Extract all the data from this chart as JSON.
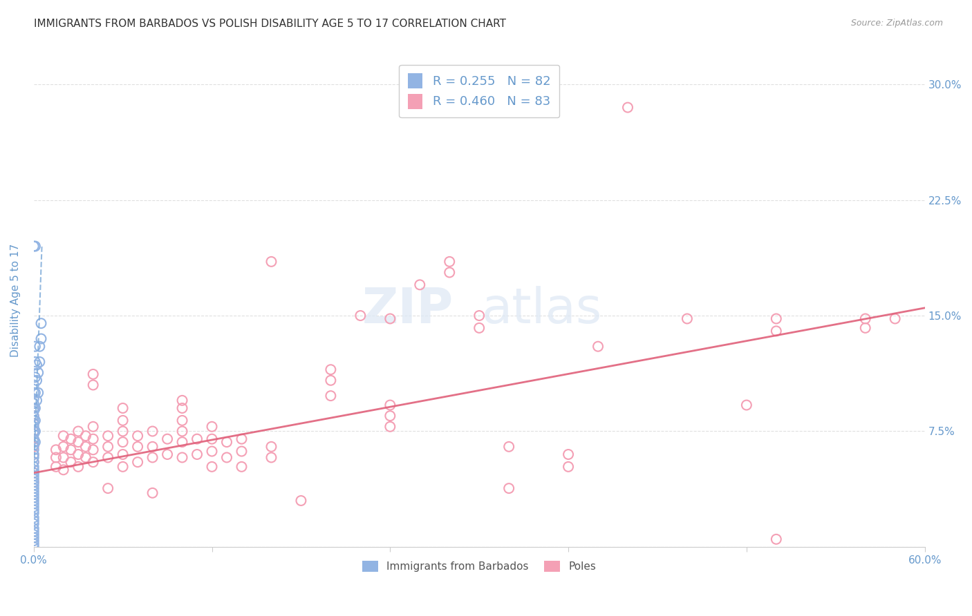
{
  "title": "IMMIGRANTS FROM BARBADOS VS POLISH DISABILITY AGE 5 TO 17 CORRELATION CHART",
  "source": "Source: ZipAtlas.com",
  "ylabel": "Disability Age 5 to 17",
  "xlim": [
    0.0,
    0.6
  ],
  "ylim": [
    0.0,
    0.32
  ],
  "ytick_vals": [
    0.0,
    0.075,
    0.15,
    0.225,
    0.3
  ],
  "yticklabels_right": [
    "",
    "7.5%",
    "15.0%",
    "22.5%",
    "30.0%"
  ],
  "xtick_vals": [
    0.0,
    0.12,
    0.24,
    0.36,
    0.48,
    0.6
  ],
  "xticklabels": [
    "0.0%",
    "",
    "",
    "",
    "",
    "60.0%"
  ],
  "legend_blue_r": "0.255",
  "legend_blue_n": "82",
  "legend_pink_r": "0.460",
  "legend_pink_n": "83",
  "legend_labels": [
    "Immigrants from Barbados",
    "Poles"
  ],
  "blue_color": "#92b4e3",
  "pink_color": "#f4a0b5",
  "blue_line_color": "#7aa8d8",
  "pink_line_color": "#e0607a",
  "blue_scatter": [
    [
      0.0,
      0.0
    ],
    [
      0.0,
      0.002
    ],
    [
      0.0,
      0.004
    ],
    [
      0.0,
      0.006
    ],
    [
      0.0,
      0.008
    ],
    [
      0.0,
      0.01
    ],
    [
      0.0,
      0.012
    ],
    [
      0.0,
      0.015
    ],
    [
      0.0,
      0.017
    ],
    [
      0.0,
      0.019
    ],
    [
      0.0,
      0.022
    ],
    [
      0.0,
      0.024
    ],
    [
      0.0,
      0.026
    ],
    [
      0.0,
      0.028
    ],
    [
      0.0,
      0.03
    ],
    [
      0.0,
      0.032
    ],
    [
      0.0,
      0.034
    ],
    [
      0.0,
      0.036
    ],
    [
      0.0,
      0.038
    ],
    [
      0.0,
      0.04
    ],
    [
      0.0,
      0.042
    ],
    [
      0.0,
      0.044
    ],
    [
      0.0,
      0.046
    ],
    [
      0.0,
      0.048
    ],
    [
      0.0,
      0.05
    ],
    [
      0.0,
      0.052
    ],
    [
      0.0,
      0.055
    ],
    [
      0.0,
      0.058
    ],
    [
      0.0,
      0.06
    ],
    [
      0.0,
      0.063
    ],
    [
      0.0,
      0.066
    ],
    [
      0.0,
      0.068
    ],
    [
      0.0,
      0.07
    ],
    [
      0.0,
      0.073
    ],
    [
      0.0,
      0.075
    ],
    [
      0.0,
      0.078
    ],
    [
      0.0,
      0.08
    ],
    [
      0.0,
      0.082
    ],
    [
      0.0,
      0.085
    ],
    [
      0.0,
      0.088
    ],
    [
      0.0,
      0.09
    ],
    [
      0.0,
      0.093
    ],
    [
      0.0,
      0.096
    ],
    [
      0.0,
      0.1
    ],
    [
      0.0,
      0.105
    ],
    [
      0.001,
      0.068
    ],
    [
      0.001,
      0.075
    ],
    [
      0.001,
      0.082
    ],
    [
      0.001,
      0.09
    ],
    [
      0.001,
      0.1
    ],
    [
      0.001,
      0.11
    ],
    [
      0.001,
      0.12
    ],
    [
      0.001,
      0.13
    ],
    [
      0.002,
      0.095
    ],
    [
      0.002,
      0.108
    ],
    [
      0.002,
      0.118
    ],
    [
      0.003,
      0.1
    ],
    [
      0.003,
      0.113
    ],
    [
      0.004,
      0.12
    ],
    [
      0.004,
      0.13
    ],
    [
      0.005,
      0.135
    ],
    [
      0.005,
      0.145
    ],
    [
      0.001,
      0.195
    ],
    [
      0.0,
      0.195
    ]
  ],
  "pink_scatter": [
    [
      0.0,
      0.042
    ],
    [
      0.0,
      0.048
    ],
    [
      0.0,
      0.055
    ],
    [
      0.0,
      0.06
    ],
    [
      0.0,
      0.065
    ],
    [
      0.0,
      0.07
    ],
    [
      0.0,
      0.075
    ],
    [
      0.0,
      0.08
    ],
    [
      0.0,
      0.085
    ],
    [
      0.0,
      0.09
    ],
    [
      0.015,
      0.052
    ],
    [
      0.015,
      0.058
    ],
    [
      0.015,
      0.063
    ],
    [
      0.02,
      0.05
    ],
    [
      0.02,
      0.058
    ],
    [
      0.02,
      0.065
    ],
    [
      0.02,
      0.072
    ],
    [
      0.025,
      0.055
    ],
    [
      0.025,
      0.063
    ],
    [
      0.025,
      0.07
    ],
    [
      0.03,
      0.052
    ],
    [
      0.03,
      0.06
    ],
    [
      0.03,
      0.068
    ],
    [
      0.03,
      0.075
    ],
    [
      0.035,
      0.058
    ],
    [
      0.035,
      0.065
    ],
    [
      0.035,
      0.072
    ],
    [
      0.04,
      0.055
    ],
    [
      0.04,
      0.063
    ],
    [
      0.04,
      0.07
    ],
    [
      0.04,
      0.078
    ],
    [
      0.04,
      0.105
    ],
    [
      0.04,
      0.112
    ],
    [
      0.05,
      0.038
    ],
    [
      0.05,
      0.058
    ],
    [
      0.05,
      0.065
    ],
    [
      0.05,
      0.072
    ],
    [
      0.06,
      0.052
    ],
    [
      0.06,
      0.06
    ],
    [
      0.06,
      0.068
    ],
    [
      0.06,
      0.075
    ],
    [
      0.06,
      0.082
    ],
    [
      0.06,
      0.09
    ],
    [
      0.07,
      0.055
    ],
    [
      0.07,
      0.065
    ],
    [
      0.07,
      0.072
    ],
    [
      0.08,
      0.035
    ],
    [
      0.08,
      0.058
    ],
    [
      0.08,
      0.065
    ],
    [
      0.08,
      0.075
    ],
    [
      0.09,
      0.06
    ],
    [
      0.09,
      0.07
    ],
    [
      0.1,
      0.058
    ],
    [
      0.1,
      0.068
    ],
    [
      0.1,
      0.075
    ],
    [
      0.1,
      0.082
    ],
    [
      0.1,
      0.09
    ],
    [
      0.1,
      0.095
    ],
    [
      0.11,
      0.06
    ],
    [
      0.11,
      0.07
    ],
    [
      0.12,
      0.062
    ],
    [
      0.12,
      0.07
    ],
    [
      0.12,
      0.078
    ],
    [
      0.12,
      0.052
    ],
    [
      0.13,
      0.058
    ],
    [
      0.13,
      0.068
    ],
    [
      0.14,
      0.052
    ],
    [
      0.14,
      0.062
    ],
    [
      0.14,
      0.07
    ],
    [
      0.16,
      0.058
    ],
    [
      0.16,
      0.065
    ],
    [
      0.16,
      0.185
    ],
    [
      0.18,
      0.03
    ],
    [
      0.2,
      0.098
    ],
    [
      0.2,
      0.108
    ],
    [
      0.2,
      0.115
    ],
    [
      0.22,
      0.15
    ],
    [
      0.24,
      0.078
    ],
    [
      0.24,
      0.085
    ],
    [
      0.24,
      0.092
    ],
    [
      0.24,
      0.148
    ],
    [
      0.26,
      0.17
    ],
    [
      0.28,
      0.178
    ],
    [
      0.28,
      0.185
    ],
    [
      0.3,
      0.142
    ],
    [
      0.3,
      0.15
    ],
    [
      0.32,
      0.038
    ],
    [
      0.32,
      0.065
    ],
    [
      0.36,
      0.052
    ],
    [
      0.36,
      0.06
    ],
    [
      0.38,
      0.13
    ],
    [
      0.4,
      0.285
    ],
    [
      0.44,
      0.148
    ],
    [
      0.48,
      0.092
    ],
    [
      0.5,
      0.005
    ],
    [
      0.5,
      0.14
    ],
    [
      0.5,
      0.148
    ],
    [
      0.56,
      0.142
    ],
    [
      0.56,
      0.148
    ],
    [
      0.58,
      0.148
    ]
  ],
  "blue_trend_x": [
    0.0,
    0.0055
  ],
  "blue_trend_y": [
    0.048,
    0.195
  ],
  "pink_trend_x": [
    0.0,
    0.6
  ],
  "pink_trend_y": [
    0.048,
    0.155
  ],
  "grid_color": "#e0e0e0",
  "background_color": "#ffffff",
  "title_fontsize": 11,
  "axis_label_color": "#6699cc",
  "tick_label_color": "#6699cc"
}
